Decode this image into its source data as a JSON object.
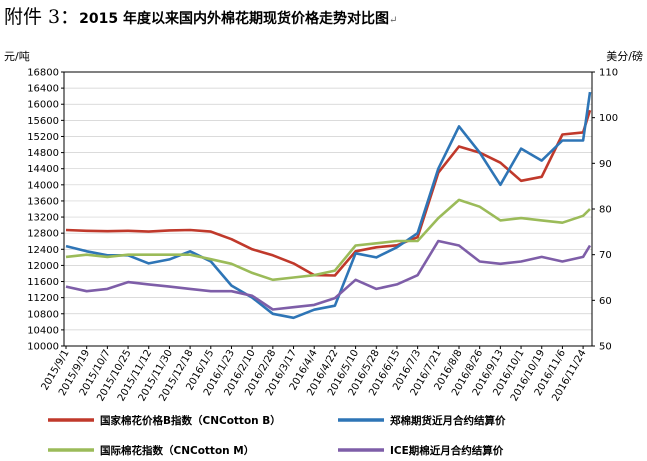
{
  "title": {
    "prefix": "附件 3：",
    "main": "2015 年度以来国内外棉花期现货价格走势对比图",
    "return_mark": "↵"
  },
  "chart_data": {
    "type": "line",
    "left_axis": {
      "unit": "元/吨",
      "ylim": [
        10000,
        16800
      ],
      "ticks": [
        10000,
        10400,
        10800,
        11200,
        11600,
        12000,
        12400,
        12800,
        13200,
        13600,
        14000,
        14400,
        14800,
        15200,
        15600,
        16000,
        16400,
        16800
      ]
    },
    "right_axis": {
      "unit": "美分/磅",
      "ylim": [
        50,
        110
      ],
      "ticks": [
        50,
        60,
        70,
        80,
        90,
        100,
        110
      ]
    },
    "x_axis": {
      "tick_labels": [
        "2015/9/1",
        "2015/9/19",
        "2015/10/7",
        "2015/10/25",
        "2015/11/12",
        "2015/11/30",
        "2015/12/18",
        "2016/1/5",
        "2016/1/23",
        "2016/2/10",
        "2016/2/28",
        "2016/3/17",
        "2016/4/4",
        "2016/4/22",
        "2016/5/10",
        "2016/5/28",
        "2016/6/15",
        "2016/7/3",
        "2016/7/21",
        "2016/8/8",
        "2016/8/26",
        "2016/9/13",
        "2016/10/1",
        "2016/10/19",
        "2016/11/6",
        "2016/11/24"
      ]
    },
    "grid": true,
    "legend_position": "bottom",
    "series": [
      {
        "name": "国家棉花价格B指数（CNCotton B）",
        "axis": "left",
        "color": "#c0392b",
        "points": [
          [
            "2015/9/1",
            12880
          ],
          [
            "2015/9/19",
            12860
          ],
          [
            "2015/10/7",
            12850
          ],
          [
            "2015/10/25",
            12860
          ],
          [
            "2015/11/12",
            12840
          ],
          [
            "2015/11/30",
            12870
          ],
          [
            "2015/12/18",
            12880
          ],
          [
            "2016/1/5",
            12840
          ],
          [
            "2016/1/23",
            12650
          ],
          [
            "2016/2/10",
            12400
          ],
          [
            "2016/2/28",
            12250
          ],
          [
            "2016/3/17",
            12050
          ],
          [
            "2016/4/4",
            11760
          ],
          [
            "2016/4/22",
            11750
          ],
          [
            "2016/5/10",
            12350
          ],
          [
            "2016/5/28",
            12450
          ],
          [
            "2016/6/15",
            12500
          ],
          [
            "2016/7/3",
            12700
          ],
          [
            "2016/7/21",
            14300
          ],
          [
            "2016/8/8",
            14950
          ],
          [
            "2016/8/26",
            14800
          ],
          [
            "2016/9/13",
            14550
          ],
          [
            "2016/10/1",
            14100
          ],
          [
            "2016/10/19",
            14200
          ],
          [
            "2016/11/6",
            15250
          ],
          [
            "2016/11/24",
            15300
          ],
          [
            "2016/11/30",
            15850
          ]
        ]
      },
      {
        "name": "郑棉期货近月合约结算价",
        "axis": "left",
        "color": "#2e75b6",
        "points": [
          [
            "2015/9/1",
            12480
          ],
          [
            "2015/9/19",
            12350
          ],
          [
            "2015/10/7",
            12250
          ],
          [
            "2015/10/25",
            12250
          ],
          [
            "2015/11/12",
            12050
          ],
          [
            "2015/11/30",
            12150
          ],
          [
            "2015/12/18",
            12350
          ],
          [
            "2016/1/5",
            12100
          ],
          [
            "2016/1/23",
            11500
          ],
          [
            "2016/2/10",
            11200
          ],
          [
            "2016/2/28",
            10800
          ],
          [
            "2016/3/17",
            10700
          ],
          [
            "2016/4/4",
            10900
          ],
          [
            "2016/4/22",
            11000
          ],
          [
            "2016/5/10",
            12300
          ],
          [
            "2016/5/28",
            12200
          ],
          [
            "2016/6/15",
            12450
          ],
          [
            "2016/7/3",
            12800
          ],
          [
            "2016/7/21",
            14400
          ],
          [
            "2016/8/8",
            15450
          ],
          [
            "2016/8/26",
            14800
          ],
          [
            "2016/9/13",
            14000
          ],
          [
            "2016/10/1",
            14900
          ],
          [
            "2016/10/19",
            14600
          ],
          [
            "2016/11/6",
            15100
          ],
          [
            "2016/11/24",
            15100
          ],
          [
            "2016/11/30",
            16300
          ]
        ]
      },
      {
        "name": "国际棉花指数（CNCotton M）",
        "axis": "right",
        "color": "#9bbb59",
        "points": [
          [
            "2015/9/1",
            69.5
          ],
          [
            "2015/9/19",
            70.0
          ],
          [
            "2015/10/7",
            69.5
          ],
          [
            "2015/10/25",
            70.0
          ],
          [
            "2015/11/12",
            70.0
          ],
          [
            "2015/11/30",
            70.0
          ],
          [
            "2015/12/18",
            70.0
          ],
          [
            "2016/1/5",
            69.0
          ],
          [
            "2016/1/23",
            68.0
          ],
          [
            "2016/2/10",
            66.0
          ],
          [
            "2016/2/28",
            64.5
          ],
          [
            "2016/3/17",
            65.0
          ],
          [
            "2016/4/4",
            65.5
          ],
          [
            "2016/4/22",
            66.5
          ],
          [
            "2016/5/10",
            72.0
          ],
          [
            "2016/5/28",
            72.5
          ],
          [
            "2016/6/15",
            73.0
          ],
          [
            "2016/7/3",
            73.0
          ],
          [
            "2016/7/21",
            78.0
          ],
          [
            "2016/8/8",
            82.0
          ],
          [
            "2016/8/26",
            80.5
          ],
          [
            "2016/9/13",
            77.5
          ],
          [
            "2016/10/1",
            78.0
          ],
          [
            "2016/10/19",
            77.5
          ],
          [
            "2016/11/6",
            77.0
          ],
          [
            "2016/11/24",
            78.5
          ],
          [
            "2016/11/30",
            80.0
          ]
        ]
      },
      {
        "name": "ICE期棉近月合约结算价",
        "axis": "right",
        "color": "#7e5ea8",
        "points": [
          [
            "2015/9/1",
            63.0
          ],
          [
            "2015/9/19",
            62.0
          ],
          [
            "2015/10/7",
            62.5
          ],
          [
            "2015/10/25",
            64.0
          ],
          [
            "2015/11/12",
            63.5
          ],
          [
            "2015/11/30",
            63.0
          ],
          [
            "2015/12/18",
            62.5
          ],
          [
            "2016/1/5",
            62.0
          ],
          [
            "2016/1/23",
            62.0
          ],
          [
            "2016/2/10",
            61.0
          ],
          [
            "2016/2/28",
            58.0
          ],
          [
            "2016/3/17",
            58.5
          ],
          [
            "2016/4/4",
            59.0
          ],
          [
            "2016/4/22",
            60.5
          ],
          [
            "2016/5/10",
            64.5
          ],
          [
            "2016/5/28",
            62.5
          ],
          [
            "2016/6/15",
            63.5
          ],
          [
            "2016/7/3",
            65.5
          ],
          [
            "2016/7/21",
            73.0
          ],
          [
            "2016/8/8",
            72.0
          ],
          [
            "2016/8/26",
            68.5
          ],
          [
            "2016/9/13",
            68.0
          ],
          [
            "2016/10/1",
            68.5
          ],
          [
            "2016/10/19",
            69.5
          ],
          [
            "2016/11/6",
            68.5
          ],
          [
            "2016/11/24",
            69.5
          ],
          [
            "2016/11/30",
            72.0
          ]
        ]
      }
    ]
  }
}
